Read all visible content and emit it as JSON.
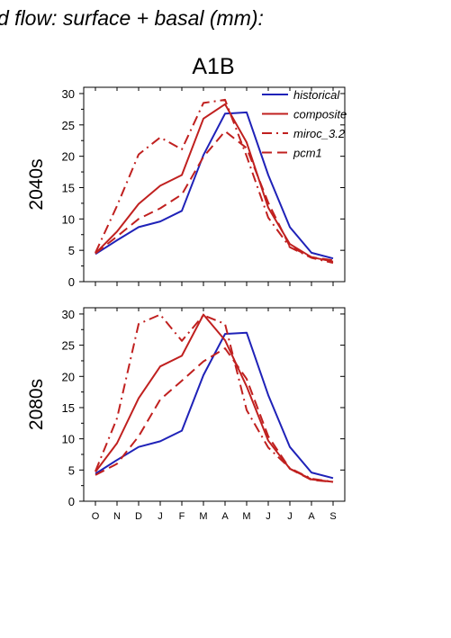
{
  "header_title": "d flow: surface + basal (mm):",
  "scenario": "A1B",
  "colors": {
    "historical": "#1f22b8",
    "future": "#c0201f",
    "axis": "#000000"
  },
  "chart_data": [
    {
      "type": "line",
      "period": "2040s",
      "categories": [
        "O",
        "N",
        "D",
        "J",
        "F",
        "M",
        "A",
        "M",
        "J",
        "J",
        "A",
        "S"
      ],
      "ylim": [
        0,
        31
      ],
      "yticks": [
        0,
        5,
        10,
        15,
        20,
        25,
        30
      ],
      "legend_position": "top-right",
      "series": [
        {
          "name": "historical",
          "style": "solid",
          "color": "#1f22b8",
          "values": [
            4.4,
            6.6,
            8.7,
            9.6,
            11.3,
            20.2,
            26.8,
            27.0,
            17.0,
            8.7,
            4.6,
            3.7
          ]
        },
        {
          "name": "composite",
          "style": "solid",
          "color": "#c0201f",
          "values": [
            4.5,
            8.0,
            12.4,
            15.3,
            17.0,
            26.0,
            28.3,
            22.2,
            11.8,
            6.0,
            3.9,
            3.2
          ]
        },
        {
          "name": "miroc_3.2",
          "style": "dashdot",
          "color": "#c0201f",
          "values": [
            4.6,
            12.1,
            20.3,
            23.0,
            21.1,
            28.5,
            29.0,
            20.0,
            10.2,
            5.5,
            3.8,
            3.0
          ]
        },
        {
          "name": "pcm1",
          "style": "dash",
          "color": "#c0201f",
          "values": [
            4.5,
            7.2,
            10.0,
            11.7,
            13.9,
            19.9,
            24.0,
            21.3,
            12.6,
            5.6,
            3.9,
            3.4
          ]
        }
      ]
    },
    {
      "type": "line",
      "period": "2080s",
      "categories": [
        "O",
        "N",
        "D",
        "J",
        "F",
        "M",
        "A",
        "M",
        "J",
        "J",
        "A",
        "S"
      ],
      "ylim": [
        0,
        31
      ],
      "yticks": [
        0,
        5,
        10,
        15,
        20,
        25,
        30
      ],
      "series": [
        {
          "name": "historical",
          "style": "solid",
          "color": "#1f22b8",
          "values": [
            4.4,
            6.6,
            8.7,
            9.6,
            11.3,
            20.2,
            26.8,
            27.0,
            17.0,
            8.7,
            4.6,
            3.7
          ]
        },
        {
          "name": "composite",
          "style": "solid",
          "color": "#c0201f",
          "values": [
            4.7,
            9.3,
            16.5,
            21.6,
            23.3,
            29.9,
            25.8,
            18.4,
            9.7,
            5.2,
            3.5,
            3.1
          ]
        },
        {
          "name": "miroc_3.2",
          "style": "dashdot",
          "color": "#c0201f",
          "values": [
            4.8,
            13.3,
            28.4,
            29.9,
            25.7,
            29.8,
            28.4,
            14.6,
            8.6,
            5.3,
            3.6,
            3.1
          ]
        },
        {
          "name": "pcm1",
          "style": "dash",
          "color": "#c0201f",
          "values": [
            4.2,
            6.0,
            10.4,
            16.3,
            19.3,
            22.4,
            24.5,
            19.6,
            10.4,
            5.2,
            3.4,
            3.1
          ]
        }
      ]
    }
  ]
}
